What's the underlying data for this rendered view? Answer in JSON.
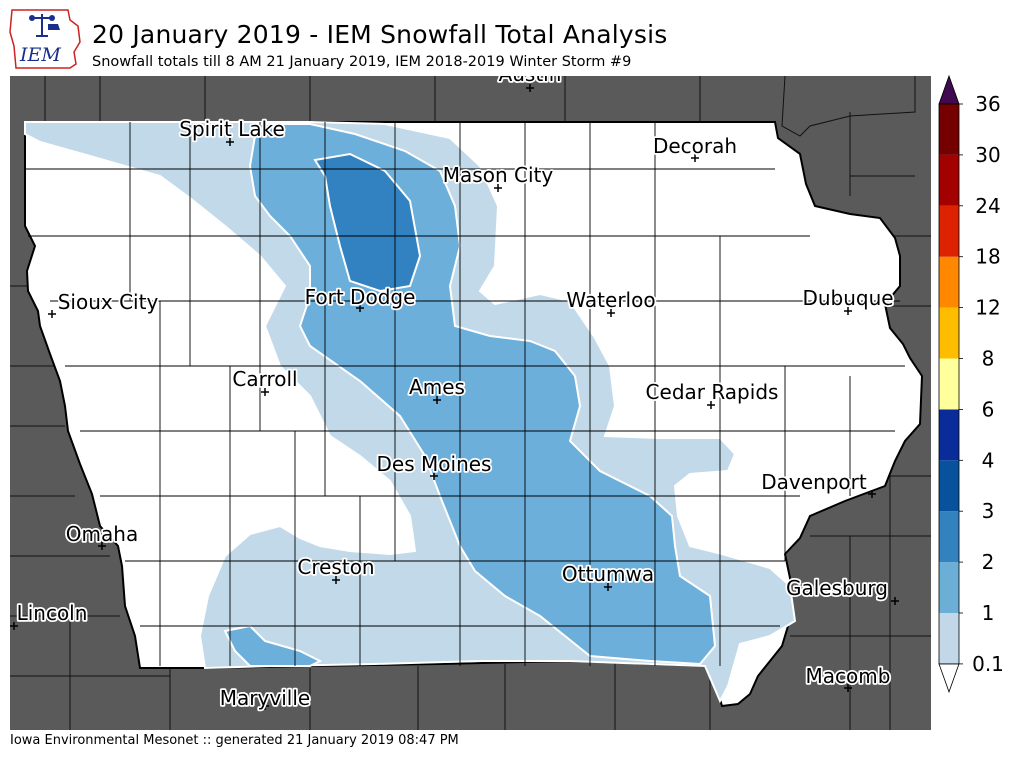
{
  "header": {
    "title": "20 January 2019 - IEM Snowfall Total Analysis",
    "subtitle": "Snowfall totals till 8 AM 21 January 2019, IEM 2018-2019 Winter Storm #9",
    "logo_text": "IEM"
  },
  "footer": {
    "credit": "Iowa Environmental Mesonet :: generated 21 January 2019 08:47 PM"
  },
  "colors": {
    "outside_state": "#5a5a5a",
    "state_fill": "#ffffff",
    "level_0_1": "#c1d9e9",
    "level_1": "#6cafdb",
    "level_2": "#3281c1"
  },
  "cities": [
    {
      "name": "Austin"
    },
    {
      "name": "Spirit Lake"
    },
    {
      "name": "Decorah"
    },
    {
      "name": "Mason City"
    },
    {
      "name": "Sioux City"
    },
    {
      "name": "Fort Dodge"
    },
    {
      "name": "Waterloo"
    },
    {
      "name": "Dubuque"
    },
    {
      "name": "Carroll"
    },
    {
      "name": "Ames"
    },
    {
      "name": "Cedar Rapids"
    },
    {
      "name": "Des Moines"
    },
    {
      "name": "Davenport"
    },
    {
      "name": "Omaha"
    },
    {
      "name": "Creston"
    },
    {
      "name": "Ottumwa"
    },
    {
      "name": "Galesburg"
    },
    {
      "name": "Lincoln"
    },
    {
      "name": "Macomb"
    },
    {
      "name": "Maryville"
    }
  ],
  "colorbar": {
    "levels": [
      "0.1",
      "1",
      "2",
      "3",
      "4",
      "6",
      "8",
      "12",
      "18",
      "24",
      "30",
      "36"
    ],
    "colors": [
      "#c2d8e8",
      "#6baed6",
      "#3182bd",
      "#08519c",
      "#0a2b9a",
      "#ffff9b",
      "#ffbd00",
      "#ff8800",
      "#dd2200",
      "#a30000",
      "#740000"
    ],
    "over_color": "#3f0a4f",
    "under_color": "#ffffff"
  }
}
